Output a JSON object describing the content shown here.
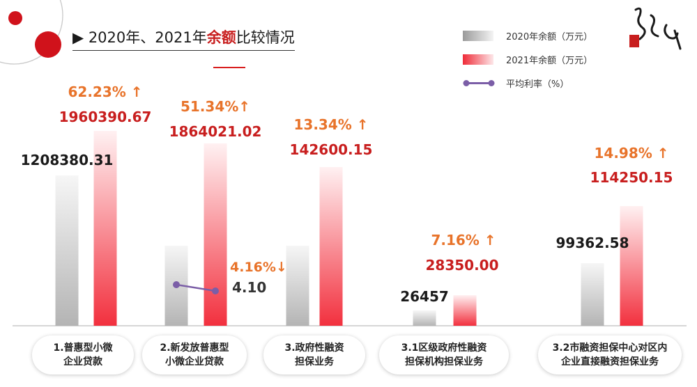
{
  "title": {
    "prefix": "▶ 2020年、2021年",
    "highlight": "余额",
    "suffix": "比较情况"
  },
  "legend": {
    "items": [
      {
        "label": "2020年余额（万元）",
        "kind": "bar-2020"
      },
      {
        "label": "2021年余额（万元）",
        "kind": "bar-2021"
      },
      {
        "label": "平均利率（%）",
        "kind": "line-rate"
      }
    ]
  },
  "colors": {
    "rate_label": "#e8732a",
    "value_2021": "#c81e1e",
    "value_2020": "#1a1a1a",
    "rate_line": "#7b5ea7"
  },
  "chart_data": {
    "type": "bar",
    "categories": [
      "1.普惠型小微\n企业贷款",
      "2.新发放普惠型\n小微企业贷款",
      "3.政府性融资\n担保业务",
      "3.1区级政府性融资\n担保机构担保业务",
      "3.2市融资担保中心对区内\n企业直接融资担保业务"
    ],
    "series": [
      {
        "name": "2020年余额（万元）",
        "values": [
          1208380.31,
          null,
          null,
          26457,
          99362.58
        ],
        "labels": [
          "1208380.31",
          "",
          "",
          "26457",
          "99362.58"
        ]
      },
      {
        "name": "2021年余额（万元）",
        "values": [
          1960390.67,
          1864021.02,
          142600.15,
          28350.0,
          114250.15
        ],
        "labels": [
          "1960390.67",
          "1864021.02",
          "142600.15",
          "28350.00",
          "114250.15"
        ]
      }
    ],
    "growth_labels": [
      "62.23% ↑",
      "51.34%↑",
      "13.34% ↑",
      "7.16% ↑",
      "14.98% ↑"
    ],
    "rate_series": {
      "name": "平均利率（%）",
      "category_index": 1,
      "start": 4.16,
      "end": 4.1,
      "start_label": "4.16%↓",
      "end_label": "4.10"
    },
    "grid": false,
    "legend_position": "top-right"
  }
}
